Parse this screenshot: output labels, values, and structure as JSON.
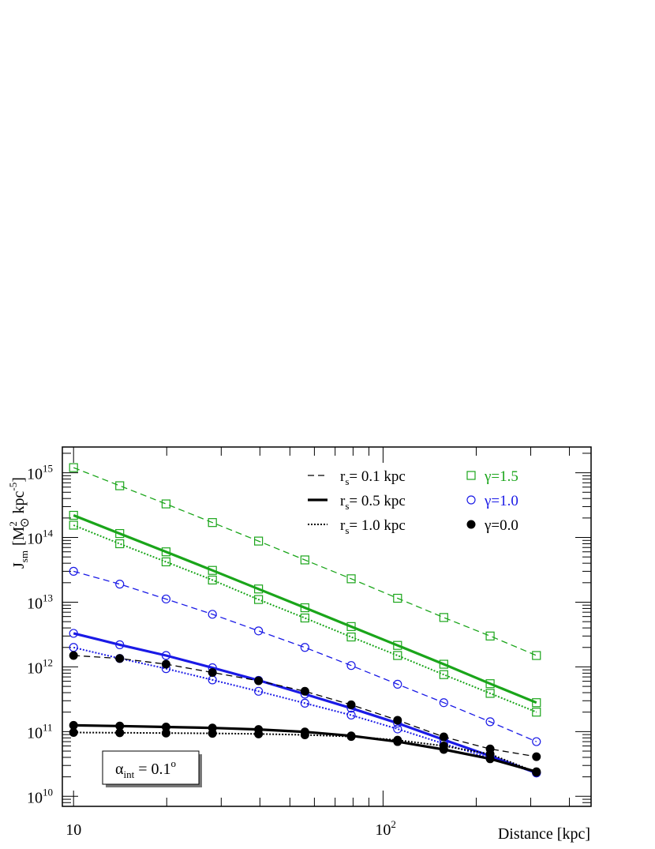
{
  "chart_data": {
    "type": "line",
    "xscale": "log",
    "yscale": "log",
    "xlim": [
      9.2,
      470
    ],
    "ylim": [
      7000000000.0,
      2500000000000000.0
    ],
    "xticks": [
      {
        "base": "10",
        "exp": ""
      },
      {
        "base": "10",
        "exp": "2"
      }
    ],
    "yticks": [
      {
        "base": "10",
        "exp": "10"
      },
      {
        "base": "10",
        "exp": "11"
      },
      {
        "base": "10",
        "exp": "12"
      },
      {
        "base": "10",
        "exp": "13"
      },
      {
        "base": "10",
        "exp": "14"
      },
      {
        "base": "10",
        "exp": "15"
      }
    ],
    "xlabel": "Distance [kpc]",
    "ylabel": {
      "main": "J",
      "sub": "sm",
      "unit_open": "[M",
      "unit_sub": "⊙",
      "unit_sup": "2",
      "unit_mid": " kpc",
      "unit_sup2": "-5",
      "unit_close": "]"
    },
    "annotation": {
      "main": "α",
      "sub": "int",
      "rest": " = 0.1",
      "sup": "o"
    },
    "x": [
      10,
      14.1,
      19.9,
      28.1,
      39.6,
      55.9,
      78.9,
      111.4,
      157.1,
      221.8,
      313
    ],
    "legend_lines": [
      {
        "label_main": "r",
        "label_sub": "s",
        "label_rest": "= 0.1 kpc",
        "style": "dashed"
      },
      {
        "label_main": "r",
        "label_sub": "s",
        "label_rest": "= 0.5 kpc",
        "style": "solid"
      },
      {
        "label_main": "r",
        "label_sub": "s",
        "label_rest": "= 1.0 kpc",
        "style": "dotted"
      }
    ],
    "legend_markers": [
      {
        "label": "γ=1.5",
        "marker": "open-square",
        "color": "#1aa51a"
      },
      {
        "label": "γ=1.0",
        "marker": "open-circle",
        "color": "#1a1ae6"
      },
      {
        "label": "γ=0.0",
        "marker": "filled-circle",
        "color": "#000000"
      }
    ],
    "series": [
      {
        "gamma": "1.5",
        "rs": "0.1",
        "style": "dashed",
        "color": "#1aa51a",
        "marker": "open-square",
        "values": [
          1200000000000000.0,
          630000000000000.0,
          330000000000000.0,
          170000000000000.0,
          88000000000000.0,
          45000000000000.0,
          23000000000000.0,
          11500000000000.0,
          5800000000000.0,
          3000000000000.0,
          1500000000000.0
        ]
      },
      {
        "gamma": "1.5",
        "rs": "0.5",
        "style": "solid",
        "color": "#1aa51a",
        "marker": "open-square",
        "values": [
          220000000000000.0,
          115000000000000.0,
          60000000000000.0,
          31000000000000.0,
          16000000000000.0,
          8200000000000.0,
          4200000000000.0,
          2150000000000.0,
          1100000000000.0,
          550000000000.0,
          280000000000.0
        ]
      },
      {
        "gamma": "1.5",
        "rs": "1.0",
        "style": "dotted",
        "color": "#1aa51a",
        "marker": "open-square",
        "values": [
          155000000000000.0,
          80000000000000.0,
          42000000000000.0,
          22000000000000.0,
          11000000000000.0,
          5700000000000.0,
          2900000000000.0,
          1500000000000.0,
          760000000000.0,
          390000000000.0,
          200000000000.0
        ]
      },
      {
        "gamma": "1.0",
        "rs": "0.1",
        "style": "dashed",
        "color": "#1a1ae6",
        "marker": "open-circle",
        "values": [
          30000000000000.0,
          19000000000000.0,
          11200000000000.0,
          6500000000000.0,
          3600000000000.0,
          2000000000000.0,
          1050000000000.0,
          540000000000.0,
          280000000000.0,
          142000000000.0,
          70000000000.0
        ]
      },
      {
        "gamma": "1.0",
        "rs": "0.5",
        "style": "solid",
        "color": "#1a1ae6",
        "marker": "open-circle",
        "values": [
          3300000000000.0,
          2200000000000.0,
          1500000000000.0,
          970000000000.0,
          620000000000.0,
          380000000000.0,
          230000000000.0,
          135000000000.0,
          75000000000.0,
          42000000000.0,
          23000000000.0
        ]
      },
      {
        "gamma": "1.0",
        "rs": "1.0",
        "style": "dotted",
        "color": "#1a1ae6",
        "marker": "open-circle",
        "values": [
          2000000000000.0,
          1350000000000.0,
          940000000000.0,
          630000000000.0,
          420000000000.0,
          275000000000.0,
          180000000000.0,
          110000000000.0,
          65000000000.0,
          39000000000.0,
          23000000000.0
        ]
      },
      {
        "gamma": "0.0",
        "rs": "0.1",
        "style": "dashed",
        "color": "#000000",
        "marker": "filled-circle",
        "values": [
          1500000000000.0,
          1350000000000.0,
          1100000000000.0,
          820000000000.0,
          610000000000.0,
          420000000000.0,
          260000000000.0,
          150000000000.0,
          83000000000.0,
          54000000000.0,
          41000000000.0
        ]
      },
      {
        "gamma": "0.0",
        "rs": "0.5",
        "style": "solid",
        "color": "#000000",
        "marker": "filled-circle",
        "values": [
          125000000000.0,
          122000000000.0,
          118000000000.0,
          114000000000.0,
          108000000000.0,
          99000000000.0,
          86000000000.0,
          70000000000.0,
          53000000000.0,
          38000000000.0,
          24000000000.0
        ]
      },
      {
        "gamma": "0.0",
        "rs": "1.0",
        "style": "dotted",
        "color": "#000000",
        "marker": "filled-circle",
        "values": [
          97000000000.0,
          96000000000.0,
          95000000000.0,
          94000000000.0,
          92000000000.0,
          89000000000.0,
          84000000000.0,
          74000000000.0,
          60000000000.0,
          45000000000.0,
          23500000000.0
        ]
      }
    ]
  }
}
